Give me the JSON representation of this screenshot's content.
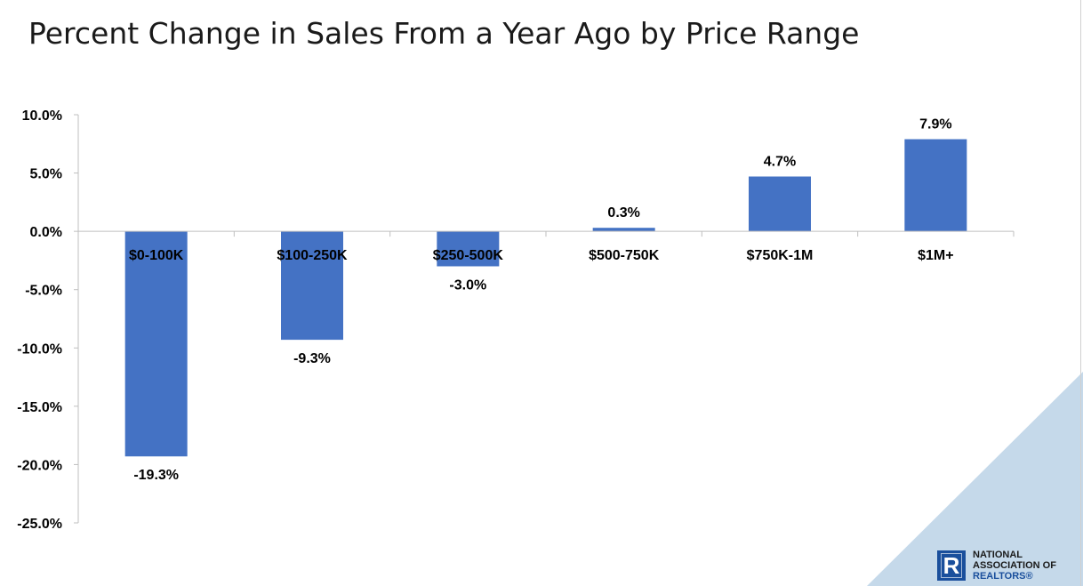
{
  "slide": {
    "title": "Percent Change in Sales From a Year Ago by Price Range"
  },
  "logo": {
    "line1": "NATIONAL",
    "line2": "ASSOCIATION OF",
    "line3": "REALTORS®",
    "mark": "R",
    "color": "#1a4f9c"
  },
  "colors": {
    "bar": "#4472c4",
    "corner_accent": "#c5d9ea",
    "axis": "#bfbfbf"
  },
  "chart_data": {
    "type": "bar",
    "title": "",
    "xlabel": "",
    "ylabel": "",
    "categories": [
      "$0-100K",
      "$100-250K",
      "$250-500K",
      "$500-750K",
      "$750K-1M",
      "$1M+"
    ],
    "values": [
      -19.3,
      -9.3,
      -3.0,
      0.3,
      4.7,
      7.9
    ],
    "value_labels": [
      "-19.3%",
      "-9.3%",
      "-3.0%",
      "0.3%",
      "4.7%",
      "7.9%"
    ],
    "yticks": [
      10,
      5,
      0,
      -5,
      -10,
      -15,
      -20,
      -25
    ],
    "ytick_labels": [
      "10.0%",
      "5.0%",
      "0.0%",
      "-5.0%",
      "-10.0%",
      "-15.0%",
      "-20.0%",
      "-25.0%"
    ],
    "ylim": [
      -25,
      10
    ],
    "grid": false,
    "legend": "none"
  }
}
